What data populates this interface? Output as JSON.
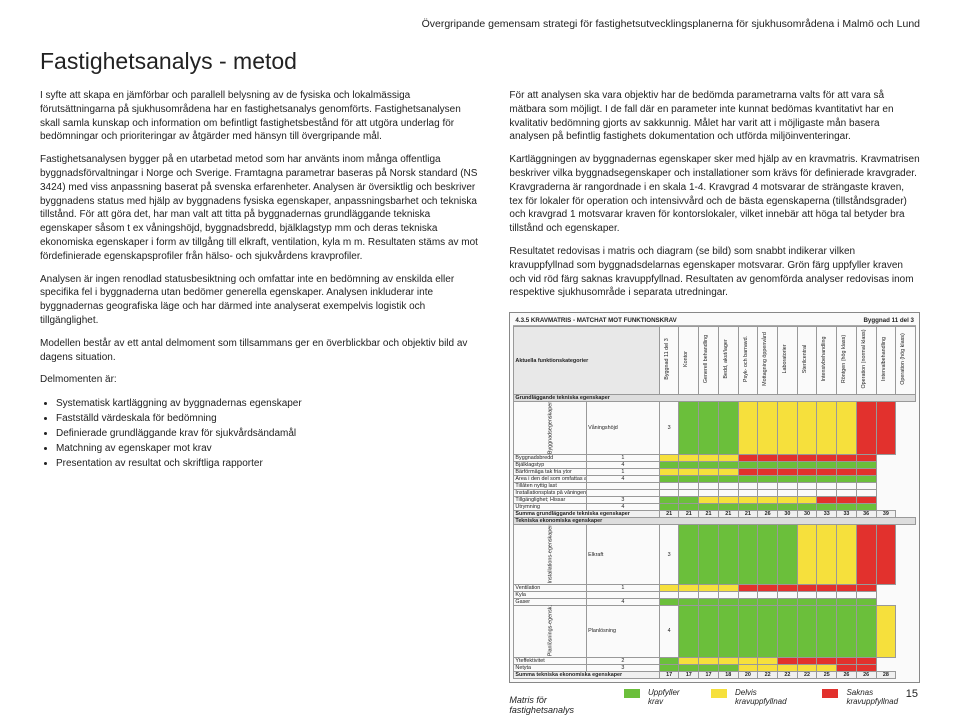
{
  "header": "Övergripande gemensam strategi för fastighetsutvecklingsplanerna för sjukhusområdena i Malmö och Lund",
  "title": "Fastighetsanalys - metod",
  "left": {
    "p1": "I syfte att skapa en jämförbar och parallell belysning av de fysiska och lokalmässiga förutsättningarna på sjukhusområdena har en fastighetsanalys genomförts. Fastighetsanalysen skall samla kunskap och information om befintligt fastighetsbestånd för att utgöra underlag för bedömningar och prioriteringar av åtgärder med hänsyn till övergripande mål.",
    "p2": "Fastighetsanalysen bygger på en utarbetad metod som har använts inom många offentliga byggnadsförvaltningar i Norge och Sverige. Framtagna parametrar baseras på Norsk standard (NS 3424) med viss anpassning baserat på svenska erfarenheter. Analysen är översiktlig och beskriver byggnadens status med hjälp av byggnadens fysiska egenskaper, anpassningsbarhet och tekniska tillstånd. För att göra det, har man valt att titta på byggnadernas grundläggande tekniska egenskaper såsom t ex våningshöjd, byggnadsbredd, bjälklagstyp mm och deras tekniska ekonomiska egenskaper i form av tillgång till elkraft, ventilation, kyla m m. Resultaten stäms av mot fördefinierade egenskapsprofiler från hälso- och sjukvårdens kravprofiler.",
    "p3": "Analysen är ingen renodlad statusbesiktning och omfattar inte en bedömning av enskilda eller specifika fel i byggnaderna utan bedömer generella egenskaper. Analysen inkluderar inte byggnadernas geografiska läge och har därmed inte analyserat exempelvis logistik och tillgänglighet.",
    "p4": "Modellen består av ett antal delmoment som tillsammans ger en överblickbar och objektiv bild av dagens situation.",
    "p5": "Delmomenten är:",
    "bullets": [
      "Systematisk kartläggning av byggnadernas egenskaper",
      "Fastställd värdeskala för bedömning",
      "Definierade grundläggande krav för sjukvårdsändamål",
      "Matchning av egenskaper mot krav",
      "Presentation av resultat och skriftliga rapporter"
    ]
  },
  "right": {
    "p1": "För att analysen ska vara objektiv har de bedömda parametrarna valts för att vara så mätbara som möjligt. I de fall där en parameter inte kunnat bedömas kvantitativt har en kvalitativ bedömning gjorts av sakkunnig. Målet har varit att i möjligaste mån basera analysen på befintlig fastighets dokumentation och utförda miljöinventeringar.",
    "p2": "Kartläggningen av byggnadernas egenskaper sker med hjälp av en kravmatris. Kravmatrisen beskriver vilka byggnadsegenskaper och installationer som krävs för definierade kravgrader. Kravgraderna är rangordnade i en skala 1-4. Kravgrad 4 motsvarar de strängaste kraven, tex för lokaler för operation och intensivvård och de bästa egenskaperna (tillståndsgrader) och kravgrad 1 motsvarar kraven för kontorslokaler, vilket innebär att höga tal betyder bra tillstånd och egenskaper.",
    "p3": "Resultatet redovisas i matris och diagram (se bild) som snabbt indikerar vilken kravuppfyllnad som byggnadsdelarnas egenskaper motsvarar. Grön färg uppfyller kraven och vid röd färg saknas kravuppfyllnad. Resultaten av genomförda analyser redovisas inom respektive sjukhusområde i separata utredningar."
  },
  "matrix": {
    "title_left": "4.3.5 KRAVMATRIS - MATCHAT MOT FUNKTIONSKRAV",
    "title_right": "Byggnad 11 del 3",
    "funk_header": "Aktuella funktionskategorier",
    "col_headers": [
      "Byggnad 11 del 3",
      "Kontor",
      "Generell behandling",
      "Bedd, akut/lager",
      "Psyk- och barnavd.",
      "Mottagning öppenvård",
      "Laboratorier",
      "Sterilcentral",
      "Intensivbehandling",
      "Röntgen (hög klass)",
      "Operation (normal klass)",
      "Intervalbehandling",
      "Operation (hög klass)"
    ],
    "section1": "Grundläggande tekniska egenskaper",
    "side1": "Byggnadsegenskaper",
    "rows1": [
      {
        "label": "Våningshöjd",
        "v": "3",
        "cells": [
          "g",
          "g",
          "g",
          "g",
          "y",
          "y",
          "y",
          "y",
          "y",
          "y",
          "r",
          "r"
        ]
      },
      {
        "label": "Byggnadsbredd",
        "v": "1",
        "cells": [
          "g",
          "y",
          "y",
          "y",
          "y",
          "r",
          "r",
          "r",
          "r",
          "r",
          "r",
          "r"
        ]
      },
      {
        "label": "Bjälklagstyp",
        "v": "4",
        "cells": [
          "g",
          "g",
          "g",
          "g",
          "g",
          "g",
          "g",
          "g",
          "g",
          "g",
          "g",
          "g"
        ]
      },
      {
        "label": "Bärförmåga tak fria ytor",
        "v": "1",
        "cells": [
          "g",
          "y",
          "y",
          "y",
          "y",
          "r",
          "r",
          "r",
          "r",
          "r",
          "r",
          "r"
        ]
      },
      {
        "label": "Area i den del som omfattas av analysen (BTA)",
        "v": "4",
        "cells": [
          "g",
          "g",
          "g",
          "g",
          "g",
          "g",
          "g",
          "g",
          "g",
          "g",
          "g",
          "g"
        ]
      },
      {
        "label": "Tillåten nyttig last",
        "v": "",
        "cells": [
          "",
          "",
          "",
          "",
          "",
          "",
          "",
          "",
          "",
          "",
          "",
          ""
        ]
      },
      {
        "label": "Installationsplats på våningen (schakt och stråk)",
        "v": "",
        "cells": [
          "",
          "",
          "",
          "",
          "",
          "",
          "",
          "",
          "",
          "",
          "",
          ""
        ]
      },
      {
        "label": "Tillgänglighet; Hissar",
        "v": "3",
        "cells": [
          "g",
          "g",
          "g",
          "y",
          "y",
          "y",
          "y",
          "y",
          "y",
          "r",
          "r",
          "r"
        ]
      },
      {
        "label": "Utrymning",
        "v": "4",
        "cells": [
          "g",
          "g",
          "g",
          "g",
          "g",
          "g",
          "g",
          "g",
          "g",
          "g",
          "g",
          "g"
        ]
      }
    ],
    "sum1": {
      "label": "Summa grundläggande tekniska egenskaper",
      "v": "21",
      "cells": [
        "18",
        "21",
        "21",
        "21",
        "21",
        "26",
        "30",
        "30",
        "33",
        "33",
        "36",
        "39"
      ]
    },
    "section2": "Tekniska ekonomiska egenskaper",
    "side2a": "Installations-egenskaper",
    "rows2a": [
      {
        "label": "Elkraft",
        "v": "3",
        "cells": [
          "g",
          "g",
          "g",
          "g",
          "g",
          "g",
          "g",
          "y",
          "y",
          "y",
          "r",
          "r"
        ]
      },
      {
        "label": "Ventilation",
        "v": "1",
        "cells": [
          "g",
          "y",
          "y",
          "y",
          "y",
          "r",
          "r",
          "r",
          "r",
          "r",
          "r",
          "r"
        ]
      },
      {
        "label": "Kyla",
        "v": "",
        "cells": [
          "",
          "",
          "",
          "",
          "",
          "",
          "",
          "",
          "",
          "",
          "",
          ""
        ]
      },
      {
        "label": "Gaser",
        "v": "4",
        "cells": [
          "g",
          "g",
          "g",
          "g",
          "g",
          "g",
          "g",
          "g",
          "g",
          "g",
          "g",
          "g"
        ]
      }
    ],
    "side2b": "Planlösnings-egensk.",
    "rows2b": [
      {
        "label": "Planlösning",
        "v": "4",
        "cells": [
          "g",
          "g",
          "g",
          "g",
          "g",
          "g",
          "g",
          "g",
          "g",
          "g",
          "g",
          "y"
        ]
      },
      {
        "label": "Yteffektivitet",
        "v": "2",
        "cells": [
          "g",
          "g",
          "y",
          "y",
          "y",
          "y",
          "y",
          "r",
          "r",
          "r",
          "r",
          "r"
        ]
      },
      {
        "label": "Netyta",
        "v": "3",
        "cells": [
          "g",
          "g",
          "g",
          "g",
          "g",
          "y",
          "y",
          "y",
          "y",
          "y",
          "r",
          "r"
        ]
      }
    ],
    "sum2": {
      "label": "Summa tekniska ekonomiska egenskaper",
      "v": "17",
      "cells": [
        "14",
        "17",
        "17",
        "18",
        "20",
        "22",
        "22",
        "22",
        "25",
        "26",
        "26",
        "28"
      ]
    }
  },
  "legend": {
    "caption": "Matris för fastighetsanalys",
    "g": "Uppfyller krav",
    "y": "Delvis kravuppfyllnad",
    "r": "Saknas kravuppfyllnad"
  },
  "page": "15",
  "colors": {
    "g": "#6bbf3b",
    "y": "#f6e03c",
    "r": "#e2312d"
  }
}
